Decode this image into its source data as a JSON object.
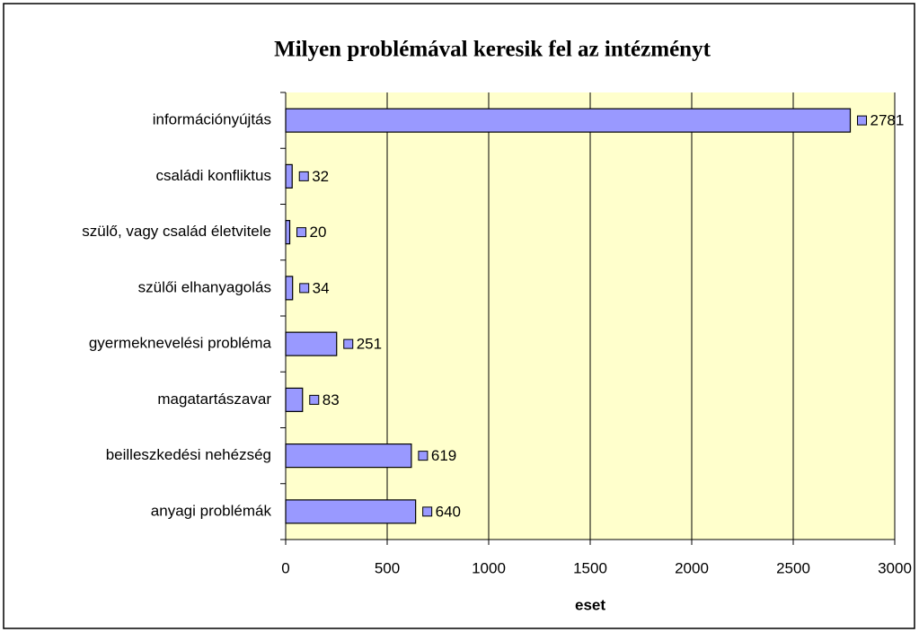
{
  "chart_data": {
    "type": "bar",
    "orientation": "horizontal",
    "title": "Milyen problémával keresik fel az intézményt",
    "categories": [
      "információnyújtás",
      "családi konfliktus",
      "szülő, vagy család életvitele",
      "szülői elhanyagolás",
      "gyermeknevelési probléma",
      "magatartászavar",
      "beilleszkedési nehézség",
      "anyagi problémák"
    ],
    "values": [
      2781,
      32,
      20,
      34,
      251,
      83,
      619,
      640
    ],
    "color": "#9999ff",
    "xlabel": "eset",
    "xlim": [
      0,
      3000
    ],
    "xticks": [
      0,
      500,
      1000,
      1500,
      2000,
      2500,
      3000
    ],
    "grid": true
  }
}
